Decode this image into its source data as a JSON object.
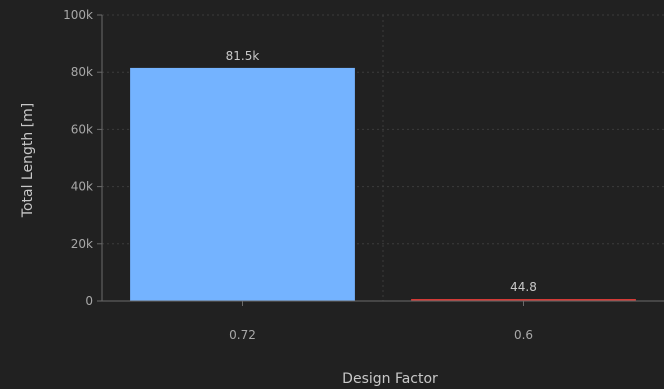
{
  "chart_data": {
    "type": "bar",
    "title": "",
    "xlabel": "Design Factor",
    "ylabel": "Total Length [m]",
    "categories": [
      "0.72",
      "0.6"
    ],
    "values": [
      81500,
      44.8
    ],
    "data_labels": [
      "81.5k",
      "44.8"
    ],
    "bar_colors": [
      "#74b3ff",
      "#d43a36"
    ],
    "ylim": [
      0,
      100000
    ],
    "yticks": [
      0,
      20000,
      40000,
      60000,
      80000,
      100000
    ],
    "ytick_labels": [
      "0",
      "20k",
      "40k",
      "60k",
      "80k",
      "100k"
    ],
    "grid": true,
    "legend": "none"
  },
  "colors": {
    "background": "#212121",
    "grid": "#3c3c3c",
    "axis": "#6a6a6a"
  }
}
